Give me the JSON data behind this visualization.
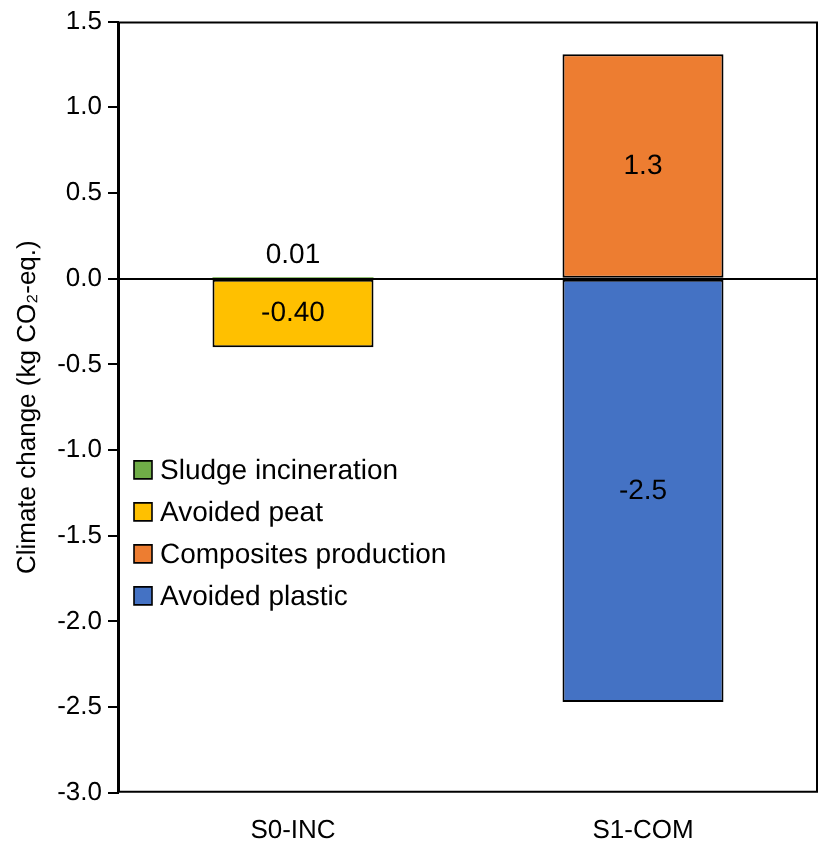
{
  "chart_data": {
    "type": "bar",
    "stacked": true,
    "ylabel": "Climate change (kg CO₂-eq.)",
    "categories": [
      "S0-INC",
      "S1-COM"
    ],
    "series": [
      {
        "name": "Sludge incineration",
        "color": "#70ad47",
        "values": [
          0.01,
          null
        ],
        "value_labels": [
          "0.01",
          null
        ]
      },
      {
        "name": "Avoided peat",
        "color": "#ffc000",
        "values": [
          -0.4,
          null
        ],
        "value_labels": [
          "-0.40",
          null
        ]
      },
      {
        "name": "Composites production",
        "color": "#ed7d31",
        "values": [
          null,
          1.31
        ],
        "value_labels": [
          null,
          "1.3"
        ]
      },
      {
        "name": "Avoided plastic",
        "color": "#4472c4",
        "values": [
          null,
          -2.47
        ],
        "value_labels": [
          null,
          "-2.5"
        ]
      }
    ],
    "ylim": [
      -3,
      1.5
    ],
    "yticks": [
      {
        "value": -3,
        "label": "-3.0"
      },
      {
        "value": -2.5,
        "label": "-2.5"
      },
      {
        "value": -2,
        "label": "-2.0"
      },
      {
        "value": -1.5,
        "label": "-1.5"
      },
      {
        "value": -1,
        "label": "-1.0"
      },
      {
        "value": -0.5,
        "label": "-0.5"
      },
      {
        "value": 0,
        "label": "0.0"
      },
      {
        "value": 0.5,
        "label": "0.5"
      },
      {
        "value": 1,
        "label": "1.0"
      },
      {
        "value": 1.5,
        "label": "1.5"
      }
    ],
    "legend": "left"
  }
}
